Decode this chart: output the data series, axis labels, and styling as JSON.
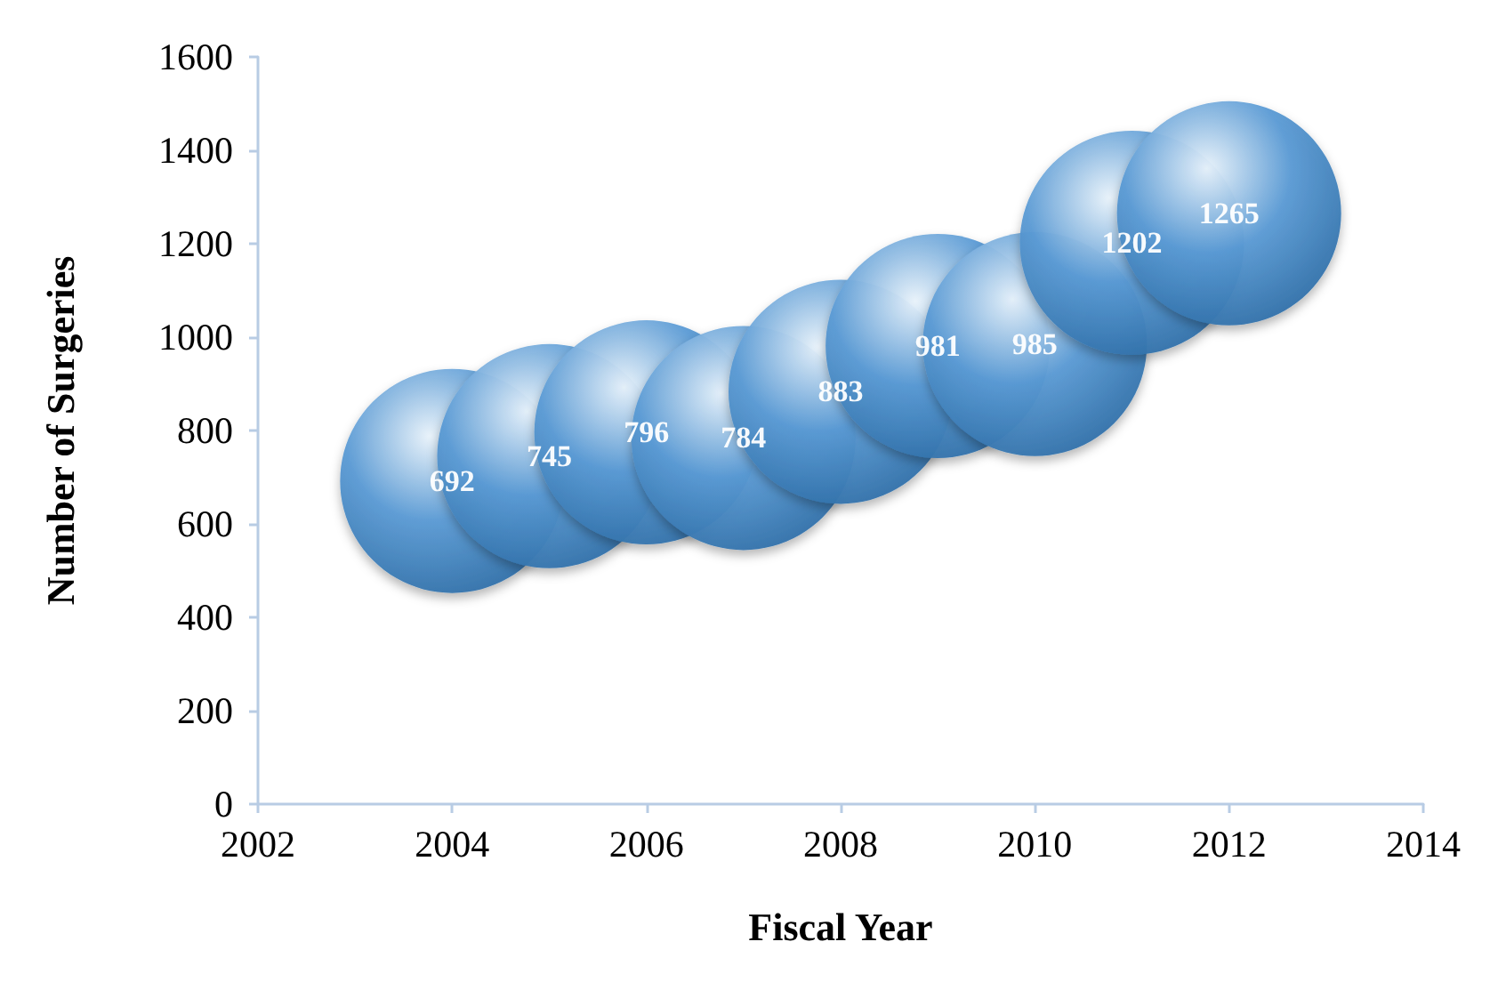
{
  "chart_data": {
    "type": "bubble",
    "xlabel": "Fiscal Year",
    "ylabel": "Number of Surgeries",
    "x": [
      2004,
      2005,
      2006,
      2007,
      2008,
      2009,
      2010,
      2011,
      2012
    ],
    "values": [
      692,
      745,
      796,
      784,
      883,
      981,
      985,
      1202,
      1265
    ],
    "sizes": [
      1,
      1,
      1,
      1,
      1,
      1,
      1,
      1,
      1
    ],
    "color": "#5b9bd5",
    "xlim": [
      2002,
      2014
    ],
    "xticks": [
      2002,
      2004,
      2006,
      2008,
      2010,
      2012,
      2014
    ],
    "ylim": [
      0,
      1600
    ],
    "yticks": [
      0,
      200,
      400,
      600,
      800,
      1000,
      1200,
      1400,
      1600
    ],
    "data_labels": true,
    "grid": false
  }
}
